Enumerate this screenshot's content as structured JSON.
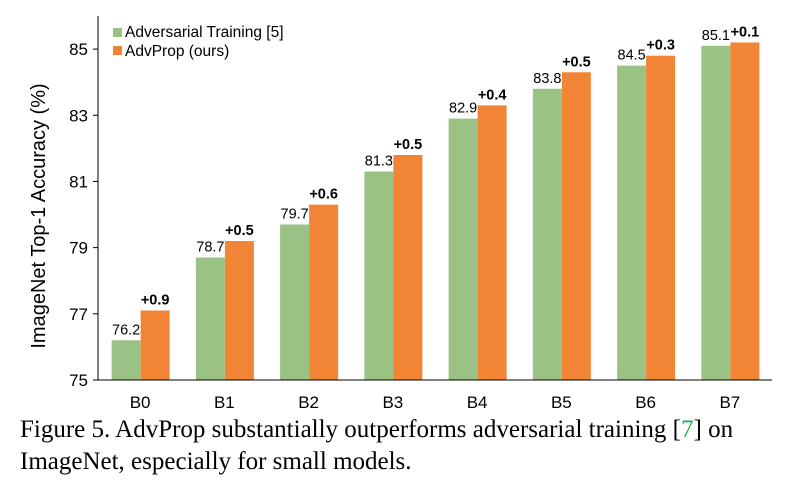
{
  "chart_data": {
    "type": "bar",
    "categories": [
      "B0",
      "B1",
      "B2",
      "B3",
      "B4",
      "B5",
      "B6",
      "B7"
    ],
    "series": [
      {
        "name": "Adversarial Training [5]",
        "color": "#9bc285",
        "values": [
          76.2,
          78.7,
          79.7,
          81.3,
          82.9,
          83.8,
          84.5,
          85.1
        ],
        "labels": [
          "76.2",
          "78.7",
          "79.7",
          "81.3",
          "82.9",
          "83.8",
          "84.5",
          "85.1"
        ]
      },
      {
        "name": "AdvProp (ours)",
        "color": "#f28535",
        "values": [
          77.1,
          79.2,
          80.3,
          81.8,
          83.3,
          84.3,
          84.8,
          85.2
        ],
        "labels": [
          "+0.9",
          "+0.5",
          "+0.6",
          "+0.5",
          "+0.4",
          "+0.5",
          "+0.3",
          "+0.1"
        ]
      }
    ],
    "xlabel": "",
    "ylabel": "ImageNet Top-1 Accuracy (%)",
    "ylim": [
      75,
      86
    ],
    "yticks": [
      "75",
      "77",
      "79",
      "81",
      "83",
      "85"
    ],
    "legend": "top-left",
    "grid": false
  },
  "caption": {
    "prefix": "Figure 5. AdvProp substantially outperforms adversarial training [",
    "ref": "7",
    "suffix": "] on ImageNet, especially for small models."
  }
}
